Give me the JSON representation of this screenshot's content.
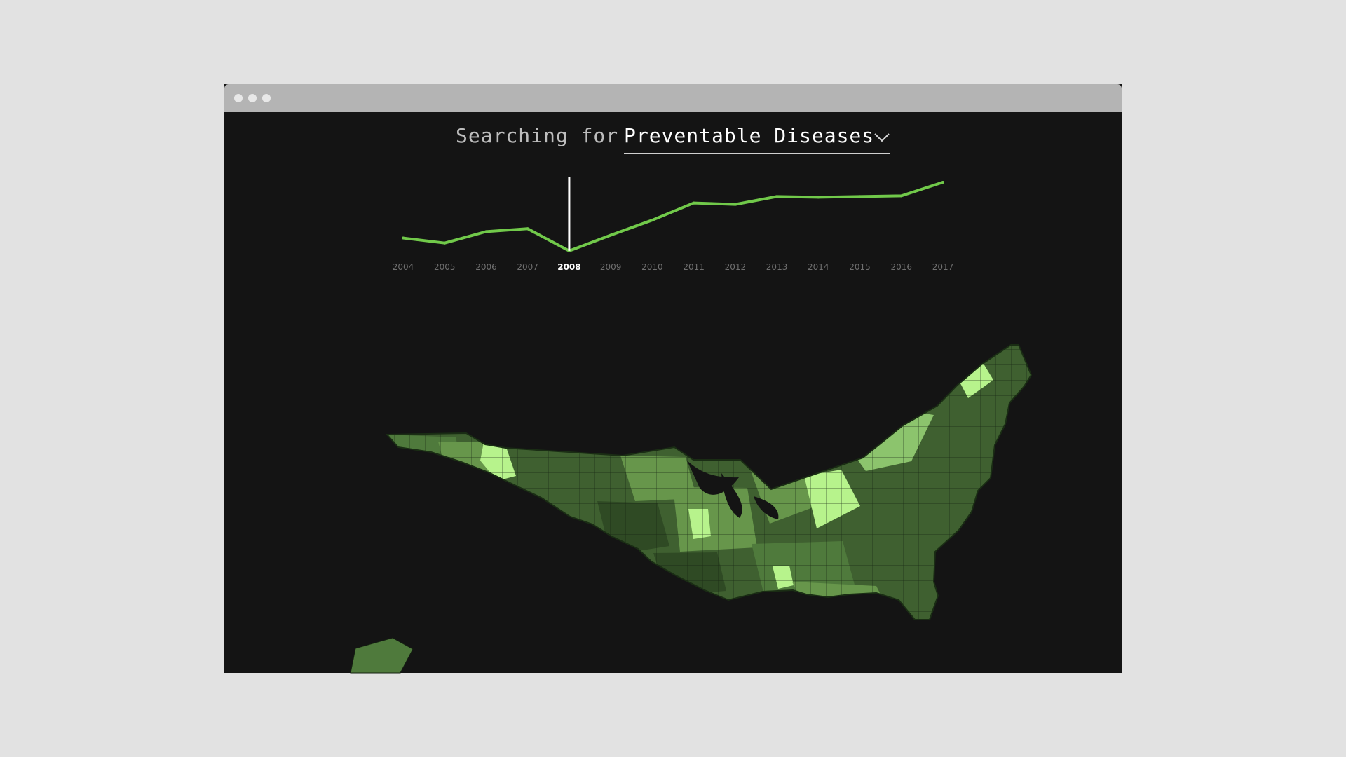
{
  "window": {
    "controls": [
      "close-dot",
      "minimize-dot",
      "maximize-dot"
    ]
  },
  "search": {
    "prefix": "Searching for",
    "value": "Preventable Diseases",
    "dropdown_icon": "chevron-down-icon"
  },
  "colors": {
    "background": "#141414",
    "line": "#71c94a",
    "selected_marker": "#ffffff",
    "axis_text": "#6f6f6f",
    "axis_text_selected": "#ffffff",
    "map_shades": [
      "#102408",
      "#2f4a24",
      "#3f6030",
      "#4f7a3c",
      "#67964b",
      "#8cc46d",
      "#b7f38c"
    ]
  },
  "chart_data": {
    "type": "line",
    "x": [
      "2004",
      "2005",
      "2006",
      "2007",
      "2008",
      "2009",
      "2010",
      "2011",
      "2012",
      "2013",
      "2014",
      "2015",
      "2016",
      "2017"
    ],
    "series": [
      {
        "values": [
          22,
          15,
          31,
          35,
          4,
          26,
          47,
          71,
          69,
          80,
          79,
          80,
          81,
          100
        ]
      }
    ],
    "selected": "2008",
    "ylim": [
      0,
      100
    ],
    "grid": false
  }
}
